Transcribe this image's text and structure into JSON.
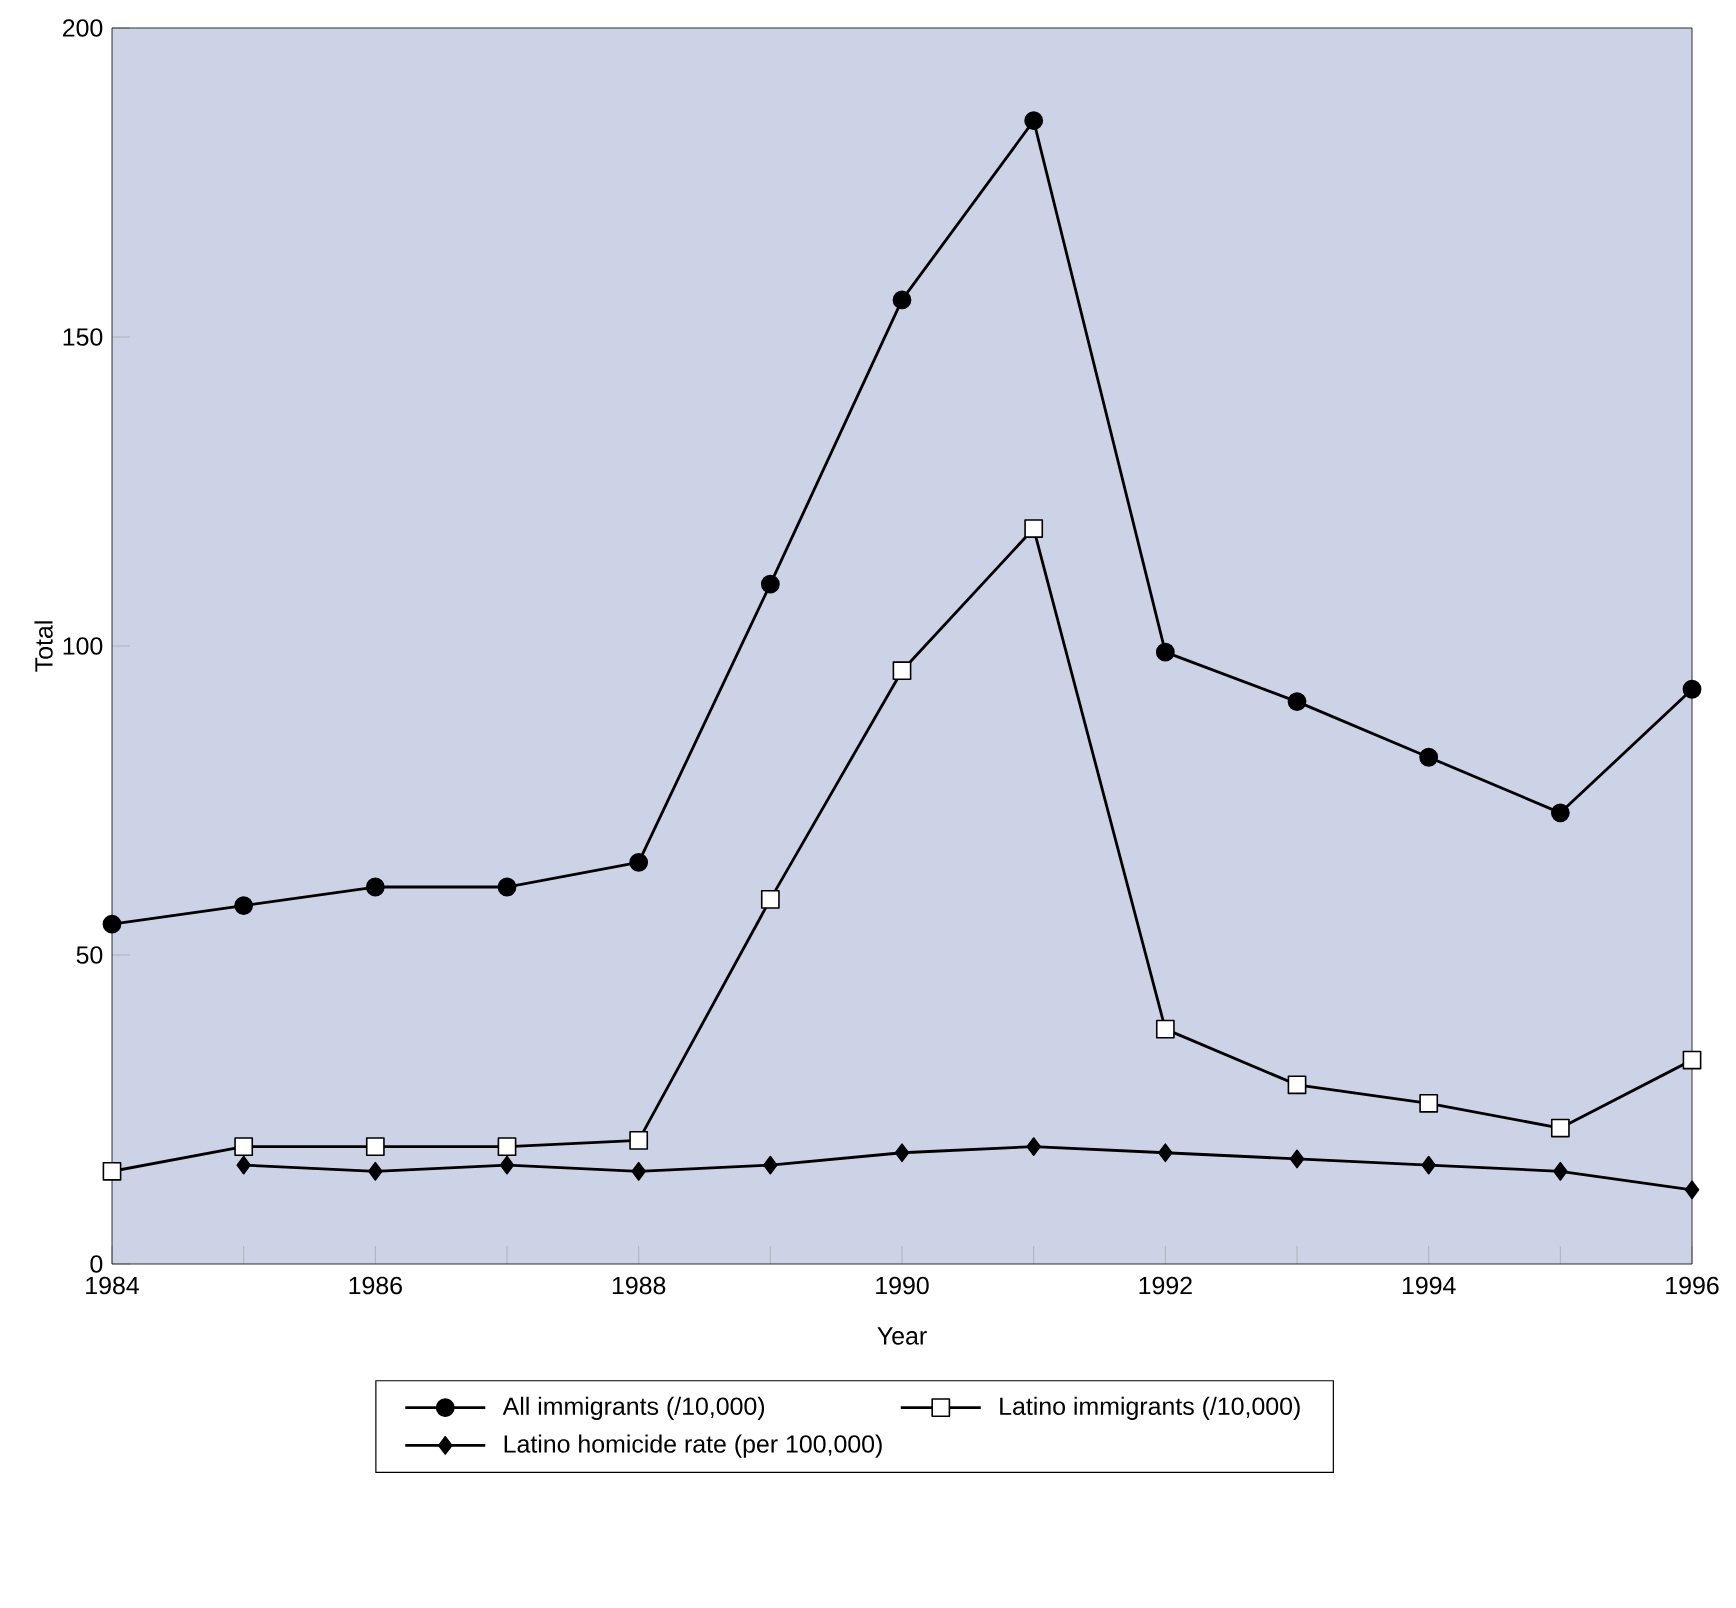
{
  "chart_data": {
    "type": "line",
    "xlabel": "Year",
    "ylabel": "Total",
    "x": [
      1984,
      1985,
      1986,
      1987,
      1988,
      1989,
      1990,
      1991,
      1992,
      1993,
      1994,
      1995,
      1996
    ],
    "series": [
      {
        "name": "All immigrants (/10,000)",
        "color": "#000000",
        "marker": "circle",
        "values": [
          55,
          58,
          61,
          61,
          65,
          110,
          156,
          185,
          99,
          91,
          82,
          73,
          93
        ]
      },
      {
        "name": "Latino immigrants (/10,000)",
        "color": "#000000",
        "marker": "square",
        "values": [
          15,
          19,
          19,
          19,
          20,
          59,
          96,
          119,
          38,
          29,
          26,
          22,
          33
        ]
      },
      {
        "name": "Latino homicide rate (per 100,000)",
        "color": "#000000",
        "marker": "diamond",
        "values": [
          null,
          16,
          15,
          16,
          15,
          16,
          18,
          19,
          18,
          17,
          16,
          15,
          12
        ]
      }
    ],
    "xlim": [
      1984,
      1996
    ],
    "ylim": [
      0,
      200
    ],
    "xticks": [
      1984,
      {
        "value": 1985,
        "label": null
      },
      1986,
      {
        "value": 1987,
        "label": null
      },
      1988,
      {
        "value": 1989,
        "label": null
      },
      1990,
      {
        "value": 1991,
        "label": null
      },
      1992,
      {
        "value": 1993,
        "label": null
      },
      1994,
      {
        "value": 1995,
        "label": null
      },
      1996
    ],
    "yticks": [
      0,
      50,
      100,
      150,
      200
    ],
    "grid": false,
    "legend": "bottom",
    "line_style": "solid"
  }
}
